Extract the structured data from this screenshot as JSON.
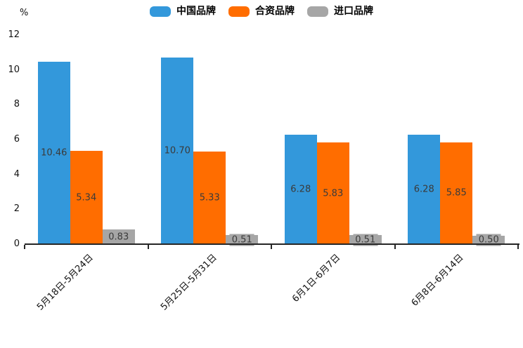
{
  "chart_data": {
    "type": "bar",
    "title": "",
    "ylabel": "%",
    "xlabel": "",
    "ylim": [
      0,
      12
    ],
    "yticks": [
      0,
      2,
      4,
      6,
      8,
      10,
      12
    ],
    "grid": false,
    "legend_position": "top",
    "value_labels": true,
    "categories": [
      "5月18日-5月24日",
      "5月25日-5月31日",
      "6月1日-6月7日",
      "6月8日-6月14日"
    ],
    "series": [
      {
        "name": "中国品牌",
        "color": "#3398db",
        "values": [
          10.46,
          10.7,
          6.28,
          6.28
        ]
      },
      {
        "name": "合资品牌",
        "color": "#ff6d00",
        "values": [
          5.34,
          5.33,
          5.83,
          5.85
        ]
      },
      {
        "name": "进口品牌",
        "color": "#a6a6a6",
        "values": [
          0.83,
          0.51,
          0.51,
          0.5
        ]
      }
    ],
    "colors": {
      "axis": "#262626",
      "tick_text": "#121212",
      "bar_value_text": "#3a3a3a",
      "background": "#ffffff"
    }
  }
}
